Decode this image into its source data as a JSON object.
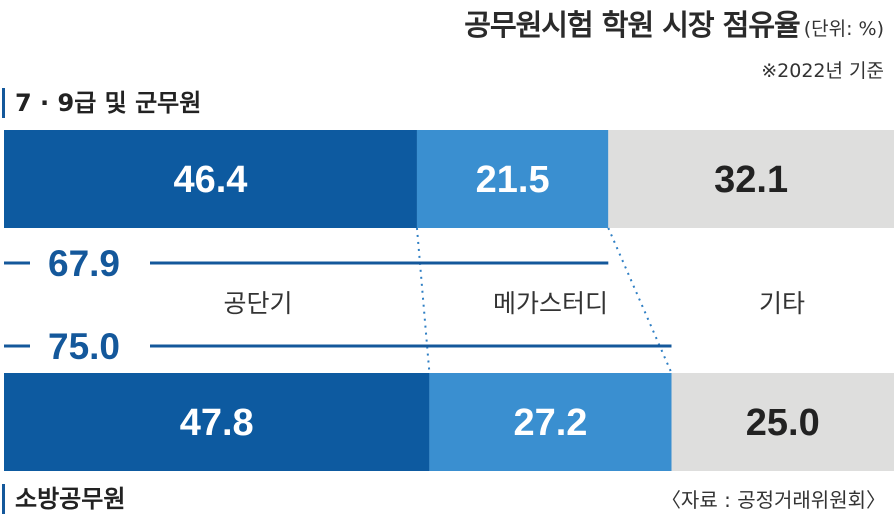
{
  "title": {
    "main": "공무원시험 학원 시장 점유율",
    "unit": "(단위: %)",
    "basis": "※2022년 기준"
  },
  "source": "〈자료 : 공정거래위원회〉",
  "colors": {
    "dark_blue": "#0d5aa0",
    "mid_blue": "#3a8fd0",
    "gray": "#dededd",
    "line": "#14589b"
  },
  "chart_data": {
    "type": "bar",
    "stacked": true,
    "orientation": "horizontal",
    "xlim": [
      0,
      100
    ],
    "categories": [
      "7 · 9급 및 군무원",
      "소방공무원"
    ],
    "series": [
      {
        "name": "공단기",
        "values": [
          46.4,
          47.8
        ],
        "color": "#0d5aa0"
      },
      {
        "name": "메가스터디",
        "values": [
          21.5,
          27.2
        ],
        "color": "#3a8fd0"
      },
      {
        "name": "기타",
        "values": [
          32.1,
          25.0
        ],
        "color": "#dededd"
      }
    ],
    "annotations": [
      {
        "label": "67.9",
        "value": 67.9,
        "category": "7 · 9급 및 군무원"
      },
      {
        "label": "75.0",
        "value": 75.0,
        "category": "소방공무원"
      }
    ],
    "value_labels": [
      [
        "46.4",
        "21.5",
        "32.1"
      ],
      [
        "47.8",
        "27.2",
        "25.0"
      ]
    ]
  }
}
